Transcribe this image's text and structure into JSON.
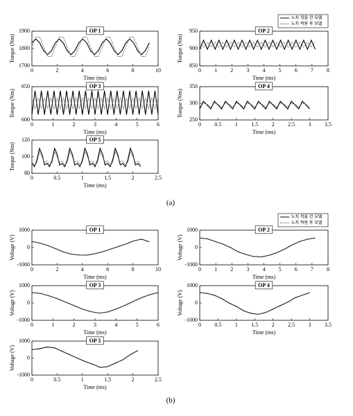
{
  "captions": [
    "(a)",
    "(b)"
  ],
  "chart_data": [
    {
      "type": "line",
      "title": "OP 1",
      "xlabel": "Time (ms)",
      "ylabel": "Torque (Nm)",
      "xlim": [
        0,
        10
      ],
      "xticks": [
        0,
        2,
        4,
        6,
        8,
        10
      ],
      "ylim": [
        1700,
        1900
      ],
      "yticks": [
        1700,
        1800,
        1900
      ],
      "x": [
        0,
        0.31,
        0.62,
        0.93,
        1.24,
        1.55,
        1.86,
        2.17,
        2.48,
        2.79,
        3.1,
        3.41,
        3.72,
        4.03,
        4.34,
        4.65,
        4.96,
        5.27,
        5.58,
        5.89,
        6.2,
        6.51,
        6.82,
        7.13,
        7.44,
        7.75,
        8.06,
        8.37,
        8.68,
        8.99,
        9.3
      ],
      "series": [
        {
          "color": "#000000",
          "linestyle": "solid",
          "values": [
            1833,
            1855,
            1833,
            1788,
            1765,
            1788,
            1833,
            1855,
            1833,
            1788,
            1765,
            1788,
            1833,
            1855,
            1833,
            1788,
            1765,
            1788,
            1833,
            1855,
            1833,
            1788,
            1765,
            1788,
            1833,
            1855,
            1833,
            1788,
            1765,
            1788,
            1833
          ]
        },
        {
          "color": "#555555",
          "linestyle": "dotted",
          "values": [
            1810,
            1866,
            1866,
            1810,
            1754,
            1754,
            1810,
            1866,
            1866,
            1810,
            1754,
            1754,
            1810,
            1866,
            1866,
            1810,
            1754,
            1754,
            1810,
            1866,
            1866,
            1810,
            1754,
            1754,
            1810,
            1866,
            1866,
            1810,
            1754,
            1754,
            1810
          ]
        }
      ]
    },
    {
      "type": "line",
      "title": "OP 2",
      "xlabel": "Time (ms)",
      "ylabel": "Torque (Nm)",
      "xlim": [
        0,
        8
      ],
      "xticks": [
        0,
        1,
        2,
        3,
        4,
        5,
        6,
        7,
        8
      ],
      "ylim": [
        850,
        950
      ],
      "yticks": [
        850,
        900,
        950
      ],
      "legend": "upper right",
      "x": [
        0,
        0.24,
        0.48,
        0.72,
        0.96,
        1.2,
        1.44,
        1.68,
        1.92,
        2.16,
        2.4,
        2.64,
        2.88,
        3.12,
        3.36,
        3.6,
        3.84,
        4.08,
        4.32,
        4.56,
        4.8,
        5.04,
        5.28,
        5.52,
        5.76,
        6,
        6.24,
        6.48,
        6.72,
        6.96,
        7.2
      ],
      "series": [
        {
          "name": "노치 적용 전 모델",
          "color": "#000000",
          "linestyle": "solid",
          "values": [
            898,
            924,
            898,
            924,
            898,
            924,
            898,
            924,
            898,
            924,
            898,
            924,
            898,
            924,
            898,
            924,
            898,
            924,
            898,
            924,
            898,
            924,
            898,
            924,
            898,
            924,
            898,
            924,
            898,
            924,
            898
          ]
        },
        {
          "name": "노치 적용 후 모델",
          "color": "#555555",
          "linestyle": "dotted",
          "values": [
            918,
            904,
            918,
            904,
            918,
            904,
            918,
            904,
            918,
            904,
            918,
            904,
            918,
            904,
            918,
            904,
            918,
            904,
            918,
            904,
            918,
            904,
            918,
            904,
            918,
            904,
            918,
            904,
            918,
            904,
            918
          ]
        }
      ]
    },
    {
      "type": "line",
      "title": "OP 3",
      "xlabel": "Time (ms)",
      "ylabel": "Torque (Nm)",
      "xlim": [
        0,
        6
      ],
      "xticks": [
        0,
        1,
        2,
        3,
        4,
        5,
        6
      ],
      "ylim": [
        600,
        650
      ],
      "yticks": [
        600,
        650
      ],
      "x": [
        0,
        0.15,
        0.3,
        0.45,
        0.6,
        0.75,
        0.9,
        1.05,
        1.2,
        1.35,
        1.5,
        1.65,
        1.8,
        1.95,
        2.1,
        2.25,
        2.4,
        2.55,
        2.7,
        2.85,
        3,
        3.15,
        3.3,
        3.45,
        3.6,
        3.75,
        3.9,
        4.05,
        4.2,
        4.35,
        4.5,
        4.65,
        4.8,
        4.95,
        5.1,
        5.25,
        5.4,
        5.55,
        5.7,
        5.85,
        6
      ],
      "series": [
        {
          "color": "#000000",
          "linestyle": "solid",
          "values": [
            608,
            644,
            608,
            644,
            608,
            644,
            608,
            644,
            608,
            644,
            608,
            644,
            608,
            644,
            608,
            644,
            608,
            644,
            608,
            644,
            608,
            644,
            608,
            644,
            608,
            644,
            608,
            644,
            608,
            644,
            608,
            644,
            608,
            644,
            608,
            644,
            608,
            644,
            608,
            644,
            608
          ]
        },
        {
          "color": "#555555",
          "linestyle": "dotted",
          "values": [
            633,
            617,
            633,
            617,
            633,
            617,
            633,
            617,
            633,
            617,
            633,
            617,
            633,
            617,
            633,
            617,
            633,
            617,
            633,
            617,
            633,
            617,
            633,
            617,
            633,
            617,
            633,
            617,
            633,
            617,
            633,
            617,
            633,
            617,
            633,
            617,
            633,
            617,
            633,
            617,
            633
          ]
        }
      ]
    },
    {
      "type": "line",
      "title": "OP 4",
      "xlabel": "Time (ms)",
      "ylabel": "Torque (Nm)",
      "xlim": [
        0,
        3.5
      ],
      "xticks": [
        0,
        0.5,
        1,
        1.5,
        2,
        2.5,
        3,
        3.5
      ],
      "ylim": [
        250,
        350
      ],
      "yticks": [
        250,
        300,
        350
      ],
      "x": [
        0,
        0.1,
        0.2,
        0.3,
        0.4,
        0.5,
        0.6,
        0.7,
        0.8,
        0.9,
        1,
        1.1,
        1.2,
        1.3,
        1.4,
        1.5,
        1.6,
        1.7,
        1.8,
        1.9,
        2,
        2.1,
        2.2,
        2.3,
        2.4,
        2.5,
        2.6,
        2.7,
        2.8,
        2.9,
        3
      ],
      "series": [
        {
          "color": "#000000",
          "linestyle": "solid",
          "values": [
            283,
            306,
            295,
            283,
            306,
            295,
            283,
            306,
            295,
            283,
            306,
            295,
            283,
            306,
            295,
            283,
            306,
            295,
            283,
            306,
            295,
            283,
            306,
            295,
            283,
            306,
            295,
            283,
            306,
            295,
            283
          ]
        },
        {
          "color": "#555555",
          "linestyle": "dotted",
          "values": [
            289,
            300,
            297,
            289,
            300,
            297,
            289,
            300,
            297,
            289,
            300,
            297,
            289,
            300,
            297,
            289,
            300,
            297,
            289,
            300,
            297,
            289,
            300,
            297,
            289,
            300,
            297,
            289,
            300,
            297,
            289
          ]
        }
      ]
    },
    {
      "type": "line",
      "title": "OP 5",
      "xlabel": "Time (ms)",
      "ylabel": "Torque (Nm)",
      "xlim": [
        0,
        2.5
      ],
      "xticks": [
        0,
        0.5,
        1,
        1.5,
        2,
        2.5
      ],
      "ylim": [
        80,
        120
      ],
      "yticks": [
        80,
        100,
        120
      ],
      "x": [
        0,
        0.05,
        0.1,
        0.15,
        0.2,
        0.25,
        0.3,
        0.35,
        0.4,
        0.45,
        0.5,
        0.55,
        0.6,
        0.65,
        0.7,
        0.75,
        0.8,
        0.85,
        0.9,
        0.95,
        1,
        1.05,
        1.1,
        1.15,
        1.2,
        1.25,
        1.3,
        1.35,
        1.4,
        1.45,
        1.5,
        1.55,
        1.6,
        1.65,
        1.7,
        1.75,
        1.8,
        1.85,
        1.9,
        1.95,
        2,
        2.05,
        2.1,
        2.15
      ],
      "series": [
        {
          "color": "#000000",
          "linestyle": "solid",
          "values": [
            92,
            88,
            96,
            110,
            103,
            90,
            92,
            88,
            96,
            110,
            103,
            90,
            92,
            88,
            96,
            110,
            103,
            90,
            92,
            88,
            96,
            110,
            103,
            90,
            92,
            88,
            96,
            110,
            103,
            90,
            92,
            88,
            96,
            110,
            103,
            90,
            92,
            88,
            96,
            110,
            103,
            90,
            92,
            88
          ]
        },
        {
          "color": "#555555",
          "linestyle": "dotted",
          "values": [
            95,
            90,
            93,
            106,
            100,
            93,
            95,
            90,
            93,
            106,
            100,
            93,
            95,
            90,
            93,
            106,
            100,
            93,
            95,
            90,
            93,
            106,
            100,
            93,
            95,
            90,
            93,
            106,
            100,
            93,
            95,
            90,
            93,
            106,
            100,
            93,
            95,
            90,
            93,
            106,
            100,
            93,
            95,
            90
          ]
        }
      ]
    },
    {
      "type": "line",
      "title": "OP 1",
      "xlabel": "Time (ms)",
      "ylabel": "Voltage (V)",
      "xlim": [
        0,
        10
      ],
      "xticks": [
        0,
        2,
        4,
        6,
        8,
        10
      ],
      "ylim": [
        -1000,
        1000
      ],
      "yticks": [
        -1000,
        0,
        1000
      ],
      "x": [
        0,
        0.62,
        1.24,
        1.86,
        2.48,
        3.1,
        3.72,
        4.34,
        4.96,
        5.58,
        6.2,
        6.82,
        7.44,
        8.06,
        8.68,
        9.3
      ],
      "series": [
        {
          "color": "#000000",
          "linestyle": "solid",
          "values": [
            350,
            260,
            120,
            -60,
            -250,
            -380,
            -430,
            -440,
            -360,
            -250,
            -100,
            50,
            200,
            380,
            480,
            330
          ]
        },
        {
          "color": "#555555",
          "linestyle": "dotted",
          "values": [
            340,
            270,
            110,
            -50,
            -260,
            -370,
            -440,
            -430,
            -370,
            -240,
            -110,
            60,
            190,
            390,
            470,
            340
          ]
        }
      ]
    },
    {
      "type": "line",
      "title": "OP 2",
      "xlabel": "Time (ms)",
      "ylabel": "Voltage (V)",
      "xlim": [
        0,
        8
      ],
      "xticks": [
        0,
        1,
        2,
        3,
        4,
        5,
        6,
        7,
        8
      ],
      "ylim": [
        -1000,
        1000
      ],
      "yticks": [
        -1000,
        0,
        1000
      ],
      "legend": "upper right",
      "x": [
        0,
        0.48,
        0.96,
        1.44,
        1.92,
        2.4,
        2.88,
        3.36,
        3.84,
        4.32,
        4.8,
        5.28,
        5.76,
        6.24,
        6.72,
        7.2
      ],
      "series": [
        {
          "name": "노치 적용 전 모델",
          "color": "#000000",
          "linestyle": "solid",
          "values": [
            550,
            500,
            350,
            200,
            0,
            -250,
            -400,
            -520,
            -540,
            -450,
            -300,
            -100,
            150,
            350,
            480,
            550
          ]
        },
        {
          "name": "노치 적용 후 모델",
          "color": "#555555",
          "linestyle": "dotted",
          "values": [
            540,
            510,
            340,
            210,
            -10,
            -240,
            -410,
            -510,
            -550,
            -440,
            -310,
            -90,
            140,
            360,
            470,
            560
          ]
        }
      ]
    },
    {
      "type": "line",
      "title": "OP 3",
      "xlabel": "Time (ms)",
      "ylabel": "Voltage (V)",
      "xlim": [
        0,
        6
      ],
      "xticks": [
        0,
        1,
        2,
        3,
        4,
        5,
        6
      ],
      "ylim": [
        -1000,
        1000
      ],
      "yticks": [
        -1000,
        0,
        1000
      ],
      "x": [
        0,
        0.4,
        0.8,
        1.2,
        1.6,
        2,
        2.4,
        2.8,
        3.2,
        3.6,
        4,
        4.4,
        4.8,
        5.2,
        5.6,
        6
      ],
      "series": [
        {
          "color": "#000000",
          "linestyle": "solid",
          "values": [
            600,
            550,
            420,
            250,
            50,
            -150,
            -350,
            -500,
            -580,
            -520,
            -350,
            -150,
            80,
            300,
            480,
            600
          ]
        },
        {
          "color": "#555555",
          "linestyle": "dotted",
          "values": [
            590,
            560,
            410,
            260,
            40,
            -140,
            -360,
            -490,
            -590,
            -510,
            -360,
            -140,
            70,
            310,
            470,
            590
          ]
        }
      ]
    },
    {
      "type": "line",
      "title": "OP 4",
      "xlabel": "Time (ms)",
      "ylabel": "Voltage (V)",
      "xlim": [
        0,
        3.5
      ],
      "xticks": [
        0,
        0.5,
        1,
        1.5,
        2,
        2.5,
        3,
        3.5
      ],
      "ylim": [
        -1000,
        1000
      ],
      "yticks": [
        -1000,
        0,
        1000
      ],
      "x": [
        0,
        0.2,
        0.4,
        0.6,
        0.8,
        1,
        1.2,
        1.4,
        1.6,
        1.8,
        2,
        2.2,
        2.4,
        2.6,
        2.8,
        3
      ],
      "series": [
        {
          "color": "#000000",
          "linestyle": "solid",
          "values": [
            600,
            550,
            450,
            250,
            0,
            -200,
            -450,
            -600,
            -650,
            -550,
            -350,
            -150,
            50,
            300,
            450,
            600
          ]
        },
        {
          "color": "#555555",
          "linestyle": "dotted",
          "values": [
            580,
            570,
            430,
            270,
            -20,
            -180,
            -470,
            -580,
            -660,
            -540,
            -370,
            -130,
            40,
            320,
            440,
            590
          ]
        }
      ]
    },
    {
      "type": "line",
      "title": "OP 5",
      "xlabel": "Time (ms)",
      "ylabel": "Voltage (V)",
      "xlim": [
        0,
        2.5
      ],
      "xticks": [
        0,
        0.5,
        1,
        1.5,
        2,
        2.5
      ],
      "ylim": [
        -1000,
        1000
      ],
      "yticks": [
        -1000,
        0,
        1000
      ],
      "x": [
        0,
        0.15,
        0.3,
        0.45,
        0.6,
        0.75,
        0.9,
        1.05,
        1.2,
        1.35,
        1.5,
        1.65,
        1.8,
        1.95,
        2.1
      ],
      "series": [
        {
          "color": "#000000",
          "linestyle": "solid",
          "values": [
            500,
            550,
            650,
            600,
            400,
            200,
            0,
            -200,
            -350,
            -550,
            -500,
            -300,
            -100,
            200,
            450
          ]
        },
        {
          "color": "#555555",
          "linestyle": "dotted",
          "values": [
            480,
            570,
            630,
            620,
            380,
            220,
            -20,
            -180,
            -370,
            -530,
            -520,
            -280,
            -120,
            220,
            430
          ]
        }
      ]
    }
  ]
}
